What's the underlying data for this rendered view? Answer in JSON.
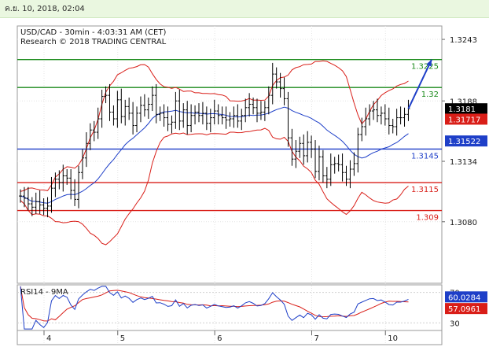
{
  "header": {
    "date_text": "ค.ย. 10, 2018, 02:04"
  },
  "chart_data": {
    "type": "line",
    "title_line1": "USD/CAD - 30min - 4:03:31 AM (CET)",
    "title_line2": "Research © 2018 TRADING CENTRAL",
    "x_tick_labels": [
      "4",
      "5",
      "6",
      "7",
      "10"
    ],
    "y_ticks": [
      "1.3243",
      "1.3188",
      "1.3134",
      "1.3080"
    ],
    "ylim": [
      1.3025,
      1.3255
    ],
    "price_flags": [
      {
        "label": "1.3181",
        "value": 1.3181,
        "bg": "#000000",
        "fg": "#ffffff"
      },
      {
        "label": "1.31717",
        "value": 1.31717,
        "bg": "#d91e18",
        "fg": "#ffffff"
      },
      {
        "label": "1.31522",
        "value": 1.31522,
        "bg": "#1e3fc8",
        "fg": "#ffffff"
      }
    ],
    "levels": [
      {
        "label": "1.3225",
        "value": 1.3225,
        "color": "#1a8a1a"
      },
      {
        "label": "1.32",
        "value": 1.32,
        "color": "#1a8a1a"
      },
      {
        "label": "1.3145",
        "value": 1.3145,
        "color": "#1e3fc8"
      },
      {
        "label": "1.3115",
        "value": 1.3115,
        "color": "#d91e18"
      },
      {
        "label": "1.309",
        "value": 1.309,
        "color": "#d91e18"
      }
    ],
    "close_series": [
      1.3103,
      1.3101,
      1.3096,
      1.3093,
      1.3098,
      1.3095,
      1.3092,
      1.3094,
      1.311,
      1.3118,
      1.3115,
      1.3121,
      1.3119,
      1.3108,
      1.31,
      1.3124,
      1.3137,
      1.315,
      1.3162,
      1.316,
      1.3172,
      1.3192,
      1.3193,
      1.3178,
      1.3172,
      1.3189,
      1.3174,
      1.3183,
      1.3177,
      1.3166,
      1.3177,
      1.3184,
      1.318,
      1.3185,
      1.3193,
      1.3176,
      1.3177,
      1.3173,
      1.3167,
      1.3169,
      1.3188,
      1.317,
      1.318,
      1.3166,
      1.3175,
      1.3178,
      1.3175,
      1.3177,
      1.3168,
      1.3173,
      1.3179,
      1.3175,
      1.3173,
      1.3171,
      1.3172,
      1.3175,
      1.317,
      1.3175,
      1.3182,
      1.3185,
      1.3182,
      1.3177,
      1.3178,
      1.3182,
      1.3193,
      1.3212,
      1.3205,
      1.3199,
      1.319,
      1.3155,
      1.3136,
      1.3143,
      1.315,
      1.3139,
      1.3151,
      1.3145,
      1.3125,
      1.3138,
      1.3121,
      1.3118,
      1.3131,
      1.3132,
      1.3131,
      1.3124,
      1.3118,
      1.3127,
      1.3132,
      1.3158,
      1.3165,
      1.3172,
      1.3179,
      1.318,
      1.3175,
      1.3177,
      1.3172,
      1.3166,
      1.3165,
      1.3173,
      1.3173,
      1.3176,
      1.3181
    ],
    "rsi": {
      "label": "RSI14 - 9MA",
      "y_ticks": [
        "70",
        "30"
      ],
      "ylim": [
        20,
        80
      ],
      "current_labels": [
        {
          "label": "60.0284",
          "value": 60.03,
          "bg": "#1e3fc8",
          "fg": "#ffffff"
        },
        {
          "label": "57.0961",
          "value": 57.1,
          "bg": "#d91e18",
          "fg": "#ffffff"
        }
      ]
    },
    "arrow": {
      "from_x_index": 100,
      "from_value": 1.3181,
      "to_x_index": 106,
      "to_value": 1.3225
    },
    "colors": {
      "price": "#000000",
      "bollinger": "#d91e18",
      "ma": "#1e3fc8",
      "support_resistance_green": "#1a8a1a",
      "arrow": "#1e3fc8"
    },
    "grid": true
  }
}
